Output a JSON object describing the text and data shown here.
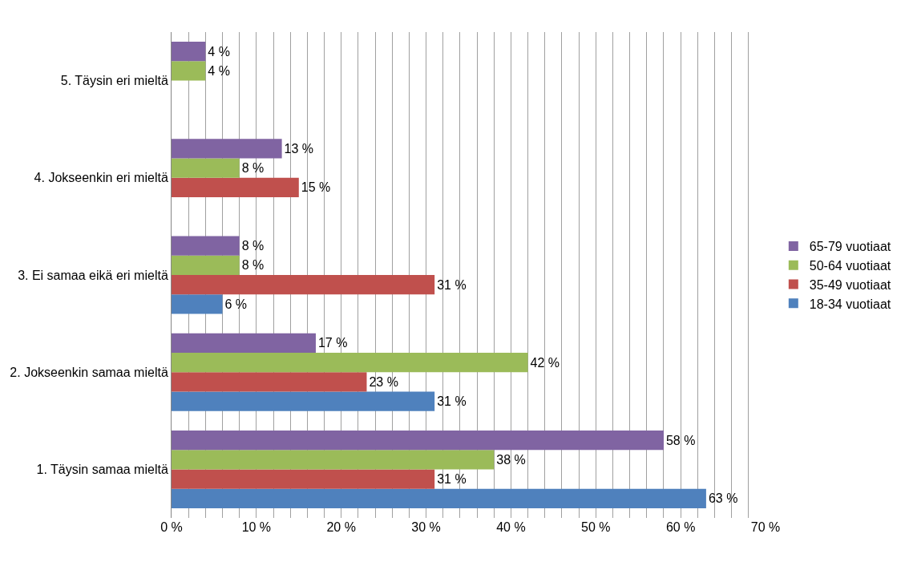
{
  "chart_data": {
    "type": "bar",
    "orientation": "horizontal",
    "categories": [
      "5. Täysin eri mieltä",
      "4. Jokseenkin eri mieltä",
      "3. Ei samaa eikä eri mieltä",
      "2. Jokseenkin samaa mieltä",
      "1. Täysin samaa mieltä"
    ],
    "series": [
      {
        "name": "18-34 vuotiaat",
        "color": "#4f81bd",
        "values": [
          null,
          null,
          6,
          31,
          63
        ],
        "value_labels": [
          null,
          null,
          "6 %",
          "31 %",
          "63 %"
        ]
      },
      {
        "name": "35-49 vuotiaat",
        "color": "#c0504d",
        "values": [
          null,
          15,
          31,
          23,
          31
        ],
        "value_labels": [
          null,
          "15 %",
          "31 %",
          "23 %",
          "31 %"
        ]
      },
      {
        "name": "50-64 vuotiaat",
        "color": "#9bbb59",
        "values": [
          4,
          8,
          8,
          42,
          38
        ],
        "value_labels": [
          "4 %",
          "8 %",
          "8 %",
          "42 %",
          "38 %"
        ]
      },
      {
        "name": "65-79 vuotiaat",
        "color": "#8064a2",
        "values": [
          4,
          13,
          8,
          17,
          58
        ],
        "value_labels": [
          "4 %",
          "13 %",
          "8 %",
          "17 %",
          "58 %"
        ]
      }
    ],
    "xlim": [
      0,
      70
    ],
    "xticks": [
      {
        "value": 0,
        "label": "0 %"
      },
      {
        "value": 2,
        "label": null
      },
      {
        "value": 4,
        "label": null
      },
      {
        "value": 6,
        "label": null
      },
      {
        "value": 8,
        "label": null
      },
      {
        "value": 10,
        "label": "10 %"
      },
      {
        "value": 12,
        "label": null
      },
      {
        "value": 14,
        "label": null
      },
      {
        "value": 16,
        "label": null
      },
      {
        "value": 18,
        "label": null
      },
      {
        "value": 20,
        "label": "20 %"
      },
      {
        "value": 22,
        "label": null
      },
      {
        "value": 24,
        "label": null
      },
      {
        "value": 26,
        "label": null
      },
      {
        "value": 28,
        "label": null
      },
      {
        "value": 30,
        "label": "30 %"
      },
      {
        "value": 32,
        "label": null
      },
      {
        "value": 34,
        "label": null
      },
      {
        "value": 36,
        "label": null
      },
      {
        "value": 38,
        "label": null
      },
      {
        "value": 40,
        "label": "40 %"
      },
      {
        "value": 42,
        "label": null
      },
      {
        "value": 44,
        "label": null
      },
      {
        "value": 46,
        "label": null
      },
      {
        "value": 48,
        "label": null
      },
      {
        "value": 50,
        "label": "50 %"
      },
      {
        "value": 52,
        "label": null
      },
      {
        "value": 54,
        "label": null
      },
      {
        "value": 56,
        "label": null
      },
      {
        "value": 58,
        "label": null
      },
      {
        "value": 60,
        "label": "60 %"
      },
      {
        "value": 62,
        "label": null
      },
      {
        "value": 64,
        "label": null
      },
      {
        "value": 66,
        "label": null
      },
      {
        "value": 68,
        "label": null
      },
      {
        "value": 70,
        "label": "70 %"
      }
    ],
    "grid": "x",
    "legend": "right"
  }
}
